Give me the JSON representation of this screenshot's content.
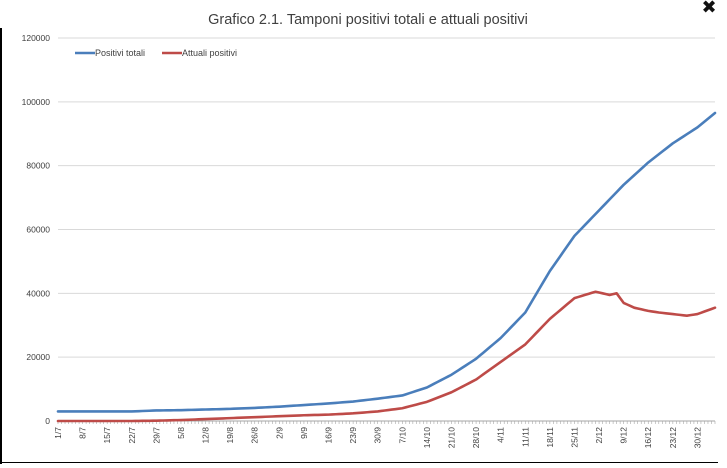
{
  "window": {
    "close_glyph": "✖",
    "close_icon": "close-icon"
  },
  "colors": {
    "series_1": "#4a7ebb",
    "series_2": "#be4b48",
    "gridline": "#d9d9d9",
    "axis": "#a6a6a6",
    "text": "#404040"
  },
  "chart_data": {
    "type": "line",
    "title": "Grafico 2.1. Tamponi positivi totali e attuali positivi",
    "xlabel": "",
    "ylabel": "",
    "ylim": [
      0,
      120000
    ],
    "yticks": [
      0,
      20000,
      40000,
      60000,
      80000,
      100000,
      120000
    ],
    "x_start": "1/7",
    "x_step_days": 1,
    "x_end": "4/1",
    "xtick_labels": [
      "1/7",
      "8/7",
      "15/7",
      "22/7",
      "29/7",
      "5/8",
      "12/8",
      "19/8",
      "26/8",
      "2/9",
      "9/9",
      "16/9",
      "23/9",
      "30/9",
      "7/10",
      "14/10",
      "21/10",
      "28/10",
      "4/11",
      "11/11",
      "18/11",
      "25/11",
      "2/12",
      "9/12",
      "16/12",
      "23/12",
      "30/12"
    ],
    "xtick_step_days": 7,
    "grid": true,
    "legend_position": "top-left",
    "series": [
      {
        "name": "Positivi totali",
        "anchors": [
          [
            "1/7",
            3000
          ],
          [
            "8/7",
            3000
          ],
          [
            "15/7",
            3000
          ],
          [
            "22/7",
            3000
          ],
          [
            "29/7",
            3300
          ],
          [
            "5/8",
            3400
          ],
          [
            "12/8",
            3600
          ],
          [
            "19/8",
            3800
          ],
          [
            "26/8",
            4100
          ],
          [
            "2/9",
            4500
          ],
          [
            "9/9",
            5000
          ],
          [
            "16/9",
            5500
          ],
          [
            "23/9",
            6100
          ],
          [
            "30/9",
            7000
          ],
          [
            "7/10",
            8000
          ],
          [
            "14/10",
            10500
          ],
          [
            "21/10",
            14500
          ],
          [
            "28/10",
            19500
          ],
          [
            "4/11",
            26000
          ],
          [
            "11/11",
            34000
          ],
          [
            "18/11",
            47000
          ],
          [
            "25/11",
            58000
          ],
          [
            "2/12",
            66000
          ],
          [
            "9/12",
            74000
          ],
          [
            "16/12",
            81000
          ],
          [
            "23/12",
            87000
          ],
          [
            "30/12",
            92000
          ],
          [
            "4/1",
            96500
          ]
        ]
      },
      {
        "name": "Attuali positivi",
        "anchors": [
          [
            "1/7",
            0
          ],
          [
            "8/7",
            0
          ],
          [
            "15/7",
            0
          ],
          [
            "22/7",
            0
          ],
          [
            "29/7",
            100
          ],
          [
            "5/8",
            300
          ],
          [
            "12/8",
            600
          ],
          [
            "19/8",
            900
          ],
          [
            "26/8",
            1200
          ],
          [
            "2/9",
            1500
          ],
          [
            "9/9",
            1800
          ],
          [
            "16/9",
            2000
          ],
          [
            "23/9",
            2400
          ],
          [
            "30/9",
            3000
          ],
          [
            "7/10",
            4000
          ],
          [
            "14/10",
            6000
          ],
          [
            "21/10",
            9000
          ],
          [
            "28/10",
            13000
          ],
          [
            "4/11",
            18500
          ],
          [
            "11/11",
            24000
          ],
          [
            "18/11",
            32000
          ],
          [
            "25/11",
            38500
          ],
          [
            "1/12",
            40500
          ],
          [
            "5/12",
            39500
          ],
          [
            "7/12",
            40000
          ],
          [
            "9/12",
            37000
          ],
          [
            "12/12",
            35500
          ],
          [
            "16/12",
            34500
          ],
          [
            "19/12",
            34000
          ],
          [
            "23/12",
            33500
          ],
          [
            "27/12",
            33000
          ],
          [
            "30/12",
            33500
          ],
          [
            "4/1",
            35500
          ]
        ]
      }
    ]
  }
}
